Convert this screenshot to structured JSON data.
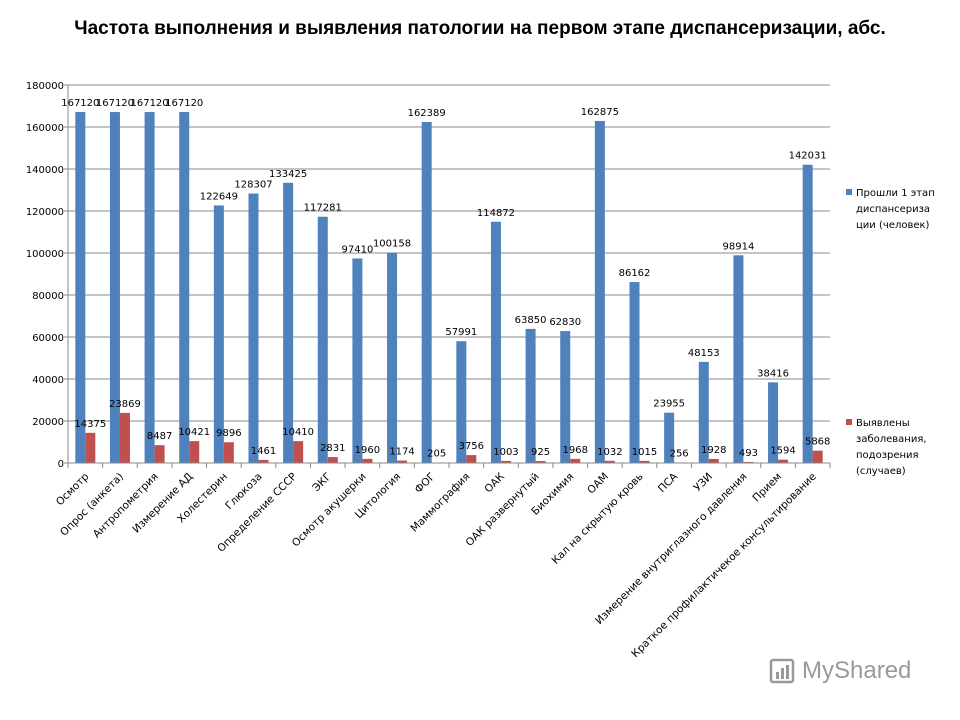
{
  "chart_data": {
    "type": "bar",
    "title": "Частота выполнения и выявления патологии на первом этапе диспансеризации, абс.",
    "ylim": [
      0,
      180000
    ],
    "yticks": [
      0,
      20000,
      40000,
      60000,
      80000,
      100000,
      120000,
      140000,
      160000,
      180000
    ],
    "grid": true,
    "legend_position": "right",
    "categories": [
      "Осмотр",
      "Опрос (анкета)",
      "Антропометрия",
      "Измерение АД",
      "Холестерин",
      "Глюкоза",
      "Определение СССР",
      "ЭКГ",
      "Осмотр акушерки",
      "Цитология",
      "ФОГ",
      "Маммография",
      "ОАК",
      "ОАК развернутый",
      "Биохимия",
      "ОАМ",
      "Кал на скрытую кровь",
      "ПСА",
      "УЗИ",
      "Измерение внутриглазного давления",
      "Прием",
      "Краткое профилактичекое консультирование"
    ],
    "series": [
      {
        "name": "Прошли 1 этап диспансеризации (человек)",
        "legend_lines": [
          "Прошли 1 этап",
          "диспансериза",
          "ции (человек)"
        ],
        "color": "#4F81BD",
        "values": [
          167120,
          167120,
          167120,
          167120,
          122649,
          128307,
          133425,
          117281,
          97410,
          100158,
          162389,
          57991,
          114872,
          63850,
          62830,
          162875,
          86162,
          23955,
          48153,
          98914,
          38416,
          142031
        ]
      },
      {
        "name": "Выявлены заболевания, подозрения (случаев)",
        "legend_lines": [
          "Выявлены",
          "заболевания,",
          "подозрения",
          "(случаев)"
        ],
        "color": "#C0504D",
        "values": [
          14375,
          23869,
          8487,
          10421,
          9896,
          1461,
          10410,
          2831,
          1960,
          1174,
          205,
          3756,
          1003,
          925,
          1968,
          1032,
          1015,
          256,
          1928,
          493,
          1594,
          5868
        ]
      }
    ]
  },
  "watermark": "MyShared"
}
